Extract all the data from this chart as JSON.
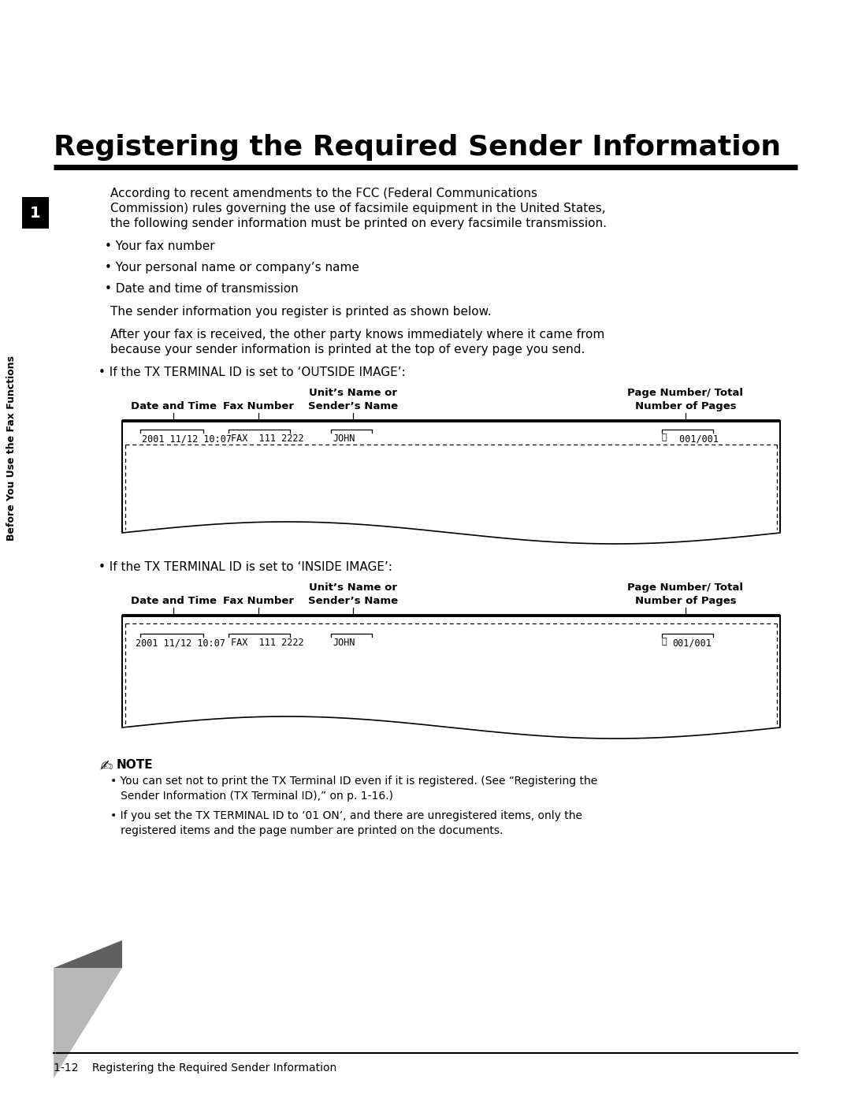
{
  "bg_color": "#ffffff",
  "title": "Registering the Required Sender Information",
  "title_fontsize": 26,
  "chapter_num": "1",
  "sidebar_text": "Before You Use the Fax Functions",
  "body_text": [
    "According to recent amendments to the FCC (Federal Communications",
    "Commission) rules governing the use of facsimile equipment in the United States,",
    "the following sender information must be printed on every facsimile transmission."
  ],
  "bullets": [
    "• Your fax number",
    "• Your personal name or company’s name",
    "• Date and time of transmission"
  ],
  "para1": "The sender information you register is printed as shown below.",
  "para2a": "After your fax is received, the other party knows immediately where it came from",
  "para2b": "because your sender information is printed at the top of every page you send.",
  "outside_label": "• If the TX TERMINAL ID is set to ‘OUTSIDE IMAGE’:",
  "inside_label": "• If the TX TERMINAL ID is set to ‘INSIDE IMAGE’:",
  "footer_text": "1-12    Registering the Required Sender Information"
}
